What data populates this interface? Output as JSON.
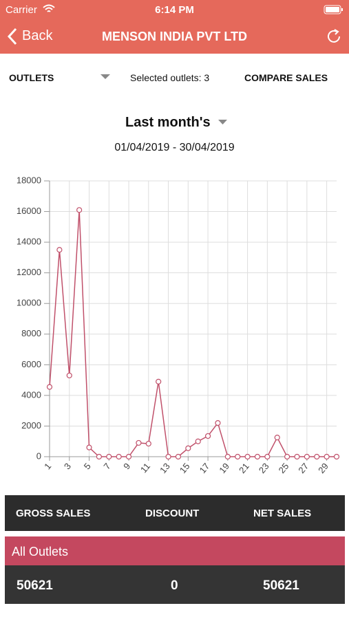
{
  "status_bar": {
    "carrier": "Carrier",
    "time": "6:14 PM"
  },
  "nav": {
    "back": "Back",
    "title": "MENSON INDIA PVT LTD"
  },
  "toolbar": {
    "outlets": "OUTLETS",
    "selected": "Selected outlets: 3",
    "compare": "COMPARE SALES"
  },
  "period": {
    "label": "Last month's",
    "range": "01/04/2019 - 30/04/2019"
  },
  "chart_data": {
    "type": "line",
    "x": [
      1,
      2,
      3,
      4,
      5,
      6,
      7,
      8,
      9,
      10,
      11,
      12,
      13,
      14,
      15,
      16,
      17,
      18,
      19,
      20,
      21,
      22,
      23,
      24,
      25,
      26,
      27,
      28,
      29,
      30
    ],
    "values": [
      4550,
      13500,
      5300,
      16100,
      600,
      0,
      0,
      0,
      0,
      900,
      850,
      4900,
      0,
      0,
      550,
      1000,
      1350,
      2200,
      0,
      0,
      0,
      0,
      0,
      1250,
      0,
      0,
      0,
      0,
      0,
      0
    ],
    "color": "#c0506a",
    "xlim": [
      1,
      30
    ],
    "xticks": [
      1,
      3,
      5,
      7,
      9,
      11,
      13,
      15,
      17,
      19,
      21,
      23,
      25,
      27,
      29
    ],
    "ylim": [
      0,
      18000
    ],
    "yticks": [
      0,
      2000,
      4000,
      6000,
      8000,
      10000,
      12000,
      14000,
      16000,
      18000
    ],
    "grid": true
  },
  "summary": {
    "headers": [
      "GROSS SALES",
      "DISCOUNT",
      "NET SALES"
    ],
    "row_label": "All Outlets",
    "values": [
      "50621",
      "0",
      "50621"
    ]
  }
}
